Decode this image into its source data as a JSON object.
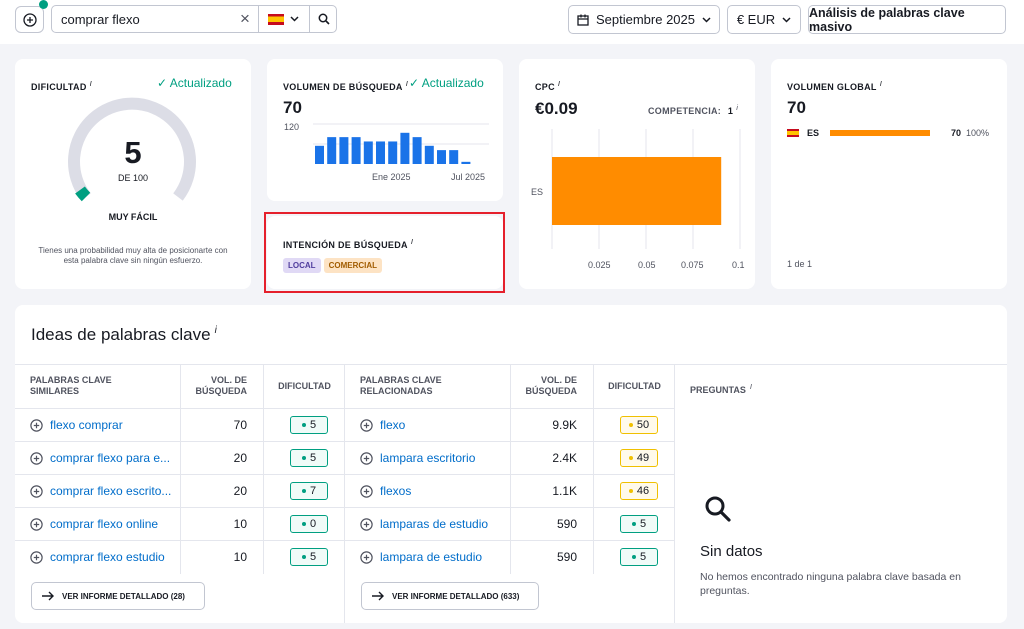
{
  "search": {
    "value": "comprar flexo",
    "country": "ES"
  },
  "header": {
    "date": "Septiembre 2025",
    "currency": "€ EUR",
    "bulk_btn": "Análisis de palabras clave masivo"
  },
  "difficulty": {
    "label": "DIFICULTAD",
    "info": "i",
    "updated": "✓ Actualizado",
    "value": "5",
    "of": "DE 100",
    "level": "MUY FÁCIL",
    "desc_line1": "Tienes una probabilidad muy alta de posicionarte con",
    "desc_line2": "esta palabra clave sin ningún esfuerzo."
  },
  "volume": {
    "label": "VOLUMEN DE BÚSQUEDA",
    "info": "i",
    "updated": "✓ Actualizado",
    "value": "70",
    "ymax": "120",
    "x1": "Ene 2025",
    "x2": "Jul 2025",
    "bars": [
      42,
      62,
      62,
      62,
      52,
      52,
      52,
      72,
      62,
      42,
      32,
      32,
      5
    ]
  },
  "intent": {
    "label": "INTENCIÓN DE BÚSQUEDA",
    "info": "i",
    "tags": [
      "LOCAL",
      "COMERCIAL"
    ]
  },
  "cpc": {
    "label": "CPC",
    "info": "i",
    "value": "€0.09",
    "comp_label": "COMPETENCIA:",
    "comp_value": "1",
    "comp_info": "i",
    "bar_label": "ES",
    "bar_value": 0.09,
    "xticks": [
      "0.025",
      "0.05",
      "0.075",
      "0.1"
    ]
  },
  "global": {
    "label": "VOLUMEN GLOBAL",
    "info": "i",
    "value": "70",
    "country": "ES",
    "count": "70",
    "pct": "100%",
    "share": 1.0,
    "pager": "1 de 1"
  },
  "ideas": {
    "title": "Ideas de palabras clave",
    "info": "i",
    "similar": {
      "h_kw": "PALABRAS CLAVE SIMILARES",
      "h_vol": "VOL. DE BÚSQUEDA",
      "h_kd": "DIFICULTAD",
      "rows": [
        {
          "kw": "flexo comprar",
          "vol": "70",
          "kd": "5"
        },
        {
          "kw": "comprar flexo para e...",
          "vol": "20",
          "kd": "5"
        },
        {
          "kw": "comprar flexo escrito...",
          "vol": "20",
          "kd": "7"
        },
        {
          "kw": "comprar flexo online",
          "vol": "10",
          "kd": "0"
        },
        {
          "kw": "comprar flexo estudio",
          "vol": "10",
          "kd": "5"
        }
      ],
      "btn": "VER INFORME DETALLADO (28)"
    },
    "related": {
      "h_kw": "PALABRAS CLAVE RELACIONADAS",
      "h_vol": "VOL. DE BÚSQUEDA",
      "h_kd": "DIFICULTAD",
      "rows": [
        {
          "kw": "flexo",
          "vol": "9.9K",
          "kd": "50"
        },
        {
          "kw": "lampara escritorio",
          "vol": "2.4K",
          "kd": "49"
        },
        {
          "kw": "flexos",
          "vol": "1.1K",
          "kd": "46"
        },
        {
          "kw": "lamparas de estudio",
          "vol": "590",
          "kd": "5"
        },
        {
          "kw": "lampara de estudio",
          "vol": "590",
          "kd": "5"
        }
      ],
      "btn": "VER INFORME DETALLADO (633)"
    },
    "questions": {
      "h": "PREGUNTAS",
      "info": "i",
      "empty_title": "Sin datos",
      "empty_line1": "No hemos encontrado ninguna palabra clave basada en",
      "empty_line2": "preguntas."
    }
  },
  "colors": {
    "green": "#009f81",
    "orange": "#ff8c00",
    "yellow": "#f0c000",
    "blue": "#006dca",
    "highlight": "#e5202c"
  }
}
